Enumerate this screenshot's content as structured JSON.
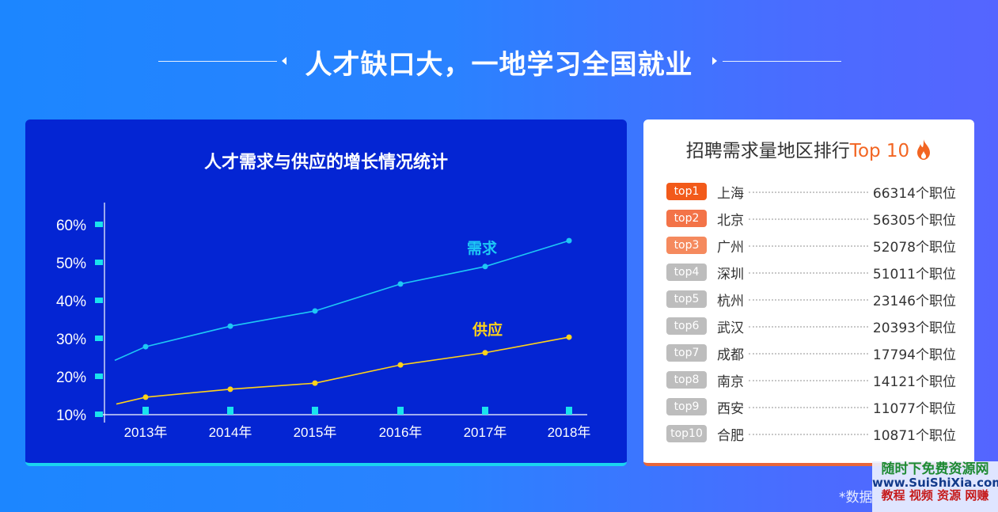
{
  "header": {
    "title": "人才缺口大，一地学习全国就业"
  },
  "chart_data": {
    "type": "line",
    "title": "人才需求与供应的增长情况统计",
    "xlabel": "",
    "ylabel": "",
    "categories": [
      "2013年",
      "2014年",
      "2015年",
      "2016年",
      "2017年",
      "2018年"
    ],
    "y_ticks": [
      "10%",
      "20%",
      "30%",
      "40%",
      "50%",
      "60%"
    ],
    "ylim": [
      10,
      60
    ],
    "grid": false,
    "series": [
      {
        "name": "需求",
        "color": "#1ec8f5",
        "values": [
          27.9,
          33.3,
          37.3,
          44.4,
          49.0,
          55.8
        ]
      },
      {
        "name": "供应",
        "color": "#ffd21a",
        "values": [
          14.6,
          16.7,
          18.3,
          23.1,
          26.3,
          30.4
        ]
      }
    ],
    "legend_position": "inline labels near line ends"
  },
  "ranking": {
    "title_prefix": "招聘需求量地区排行",
    "title_highlight": "Top 10",
    "icon": "flame-icon",
    "items": [
      {
        "rank": "top1",
        "city": "上海",
        "count": "66314个职位",
        "color": "#f25a1a"
      },
      {
        "rank": "top2",
        "city": "北京",
        "count": "56305个职位",
        "color": "#f37348"
      },
      {
        "rank": "top3",
        "city": "广州",
        "count": "52078个职位",
        "color": "#f58a5e"
      },
      {
        "rank": "top4",
        "city": "深圳",
        "count": "51011个职位",
        "color": "#bdbdbd"
      },
      {
        "rank": "top5",
        "city": "杭州",
        "count": "23146个职位",
        "color": "#bdbdbd"
      },
      {
        "rank": "top6",
        "city": "武汉",
        "count": "20393个职位",
        "color": "#bdbdbd"
      },
      {
        "rank": "top7",
        "city": "成都",
        "count": "17794个职位",
        "color": "#bdbdbd"
      },
      {
        "rank": "top8",
        "city": "南京",
        "count": "14121个职位",
        "color": "#bdbdbd"
      },
      {
        "rank": "top9",
        "city": "西安",
        "count": "11077个职位",
        "color": "#bdbdbd"
      },
      {
        "rank": "top10",
        "city": "合肥",
        "count": "10871个职位",
        "color": "#bdbdbd"
      }
    ]
  },
  "footnote": "*数据",
  "watermark": {
    "line1": "随时下免费资源网",
    "line2": "www.SuiShiXia.com",
    "line3": "教程 视频 资源 网赚"
  }
}
